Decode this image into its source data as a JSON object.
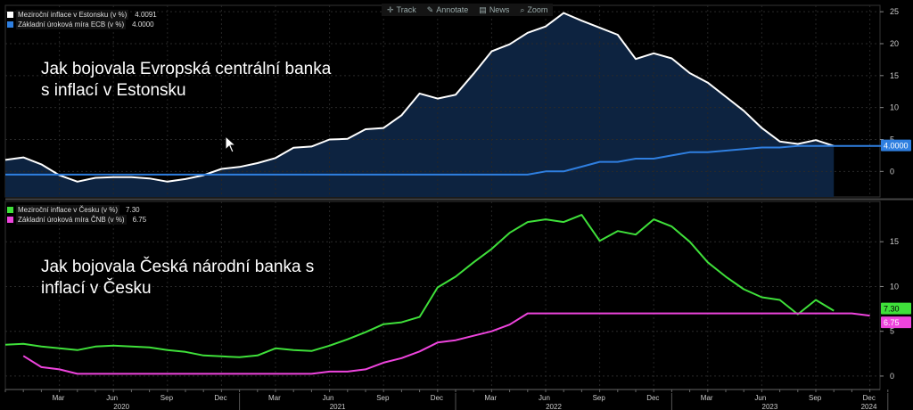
{
  "toolbar": {
    "track": "Track",
    "annotate": "Annotate",
    "news": "News",
    "zoom": "Zoom",
    "icons": [
      "crosshair-icon",
      "pencil-icon",
      "news-icon",
      "magnifier-icon"
    ]
  },
  "colors": {
    "estonia_cpi": "#ffffff",
    "ecb_rate": "#2f7fe0",
    "czech_cpi": "#3fe03a",
    "cnb_rate": "#ee44dd",
    "area_fill": "#0d2340"
  },
  "x_axis": {
    "months": [
      "Mar",
      "Jun",
      "Sep",
      "Dec",
      "Mar",
      "Jun",
      "Sep",
      "Dec",
      "Mar",
      "Jun",
      "Sep",
      "Dec",
      "Mar",
      "Jun",
      "Sep",
      "Dec"
    ],
    "years": [
      "2020",
      "2021",
      "2022",
      "2023",
      "2024"
    ]
  },
  "chart_data": [
    {
      "type": "area",
      "annotation": [
        "Jak bojovala Evropská centrální banka",
        "s inflací v Estonsku"
      ],
      "ylim": [
        -4,
        26
      ],
      "yticks": [
        0,
        5,
        10,
        15,
        20,
        25
      ],
      "grid": true,
      "legend_position": "top-left",
      "x_start": "2019-12",
      "series": [
        {
          "name": "Meziroční inflace v Estonsku (v %)",
          "last_value": "4.0091",
          "values": [
            1.8,
            2.2,
            1.1,
            -0.6,
            -1.6,
            -1.0,
            -0.9,
            -0.9,
            -1.1,
            -1.6,
            -1.2,
            -0.6,
            0.4,
            0.7,
            1.3,
            2.1,
            3.7,
            3.9,
            5.0,
            5.1,
            6.6,
            6.8,
            8.8,
            12.2,
            11.4,
            12.0,
            15.3,
            18.8,
            19.9,
            21.7,
            22.7,
            24.8,
            23.6,
            22.5,
            21.4,
            17.6,
            18.5,
            17.7,
            15.4,
            13.9,
            11.7,
            9.5,
            6.8,
            4.7,
            4.3,
            4.9,
            4.0
          ]
        },
        {
          "name": "Základní úroková míra ECB (v %)",
          "last_value": "4.0000",
          "values": [
            -0.5,
            -0.5,
            -0.5,
            -0.5,
            -0.5,
            -0.5,
            -0.5,
            -0.5,
            -0.5,
            -0.5,
            -0.5,
            -0.5,
            -0.5,
            -0.5,
            -0.5,
            -0.5,
            -0.5,
            -0.5,
            -0.5,
            -0.5,
            -0.5,
            -0.5,
            -0.5,
            -0.5,
            -0.5,
            -0.5,
            -0.5,
            -0.5,
            -0.5,
            -0.5,
            0.0,
            0.0,
            0.75,
            1.5,
            1.5,
            2.0,
            2.0,
            2.5,
            3.0,
            3.0,
            3.25,
            3.5,
            3.75,
            3.75,
            4.0,
            4.0,
            4.0,
            4.0,
            4.0,
            4.0
          ]
        }
      ],
      "current_label": "4.0000"
    },
    {
      "type": "line",
      "annotation": [
        "Jak bojovala Česká národní banka s",
        "inflací v Česku"
      ],
      "ylim": [
        -1.5,
        19.5
      ],
      "yticks": [
        0,
        5,
        10,
        15
      ],
      "grid": true,
      "legend_position": "top-left",
      "x_start": "2019-12",
      "series": [
        {
          "name": "Meziroční inflace v Česku (v %)",
          "last_value": "7.30",
          "values": [
            3.5,
            3.6,
            3.3,
            3.1,
            2.9,
            3.3,
            3.4,
            3.3,
            3.2,
            2.9,
            2.7,
            2.3,
            2.2,
            2.1,
            2.3,
            3.1,
            2.9,
            2.8,
            3.4,
            4.1,
            4.9,
            5.8,
            6.0,
            6.6,
            9.9,
            11.1,
            12.7,
            14.2,
            16.0,
            17.2,
            17.5,
            17.2,
            18.0,
            15.1,
            16.2,
            15.8,
            17.5,
            16.7,
            15.0,
            12.7,
            11.1,
            9.7,
            8.8,
            8.5,
            6.9,
            8.5,
            7.3
          ]
        },
        {
          "name": "Základní úroková míra ČNB (v %)",
          "last_value": "6.75",
          "values": [
            null,
            2.25,
            1.0,
            0.75,
            0.25,
            0.25,
            0.25,
            0.25,
            0.25,
            0.25,
            0.25,
            0.25,
            0.25,
            0.25,
            0.25,
            0.25,
            0.25,
            0.25,
            0.5,
            0.5,
            0.75,
            1.5,
            2.0,
            2.75,
            3.75,
            4.0,
            4.5,
            5.0,
            5.75,
            7.0,
            7.0,
            7.0,
            7.0,
            7.0,
            7.0,
            7.0,
            7.0,
            7.0,
            7.0,
            7.0,
            7.0,
            7.0,
            7.0,
            7.0,
            7.0,
            7.0,
            7.0,
            7.0,
            6.75
          ]
        }
      ],
      "current_labels": [
        "7.30",
        "6.75"
      ]
    }
  ]
}
